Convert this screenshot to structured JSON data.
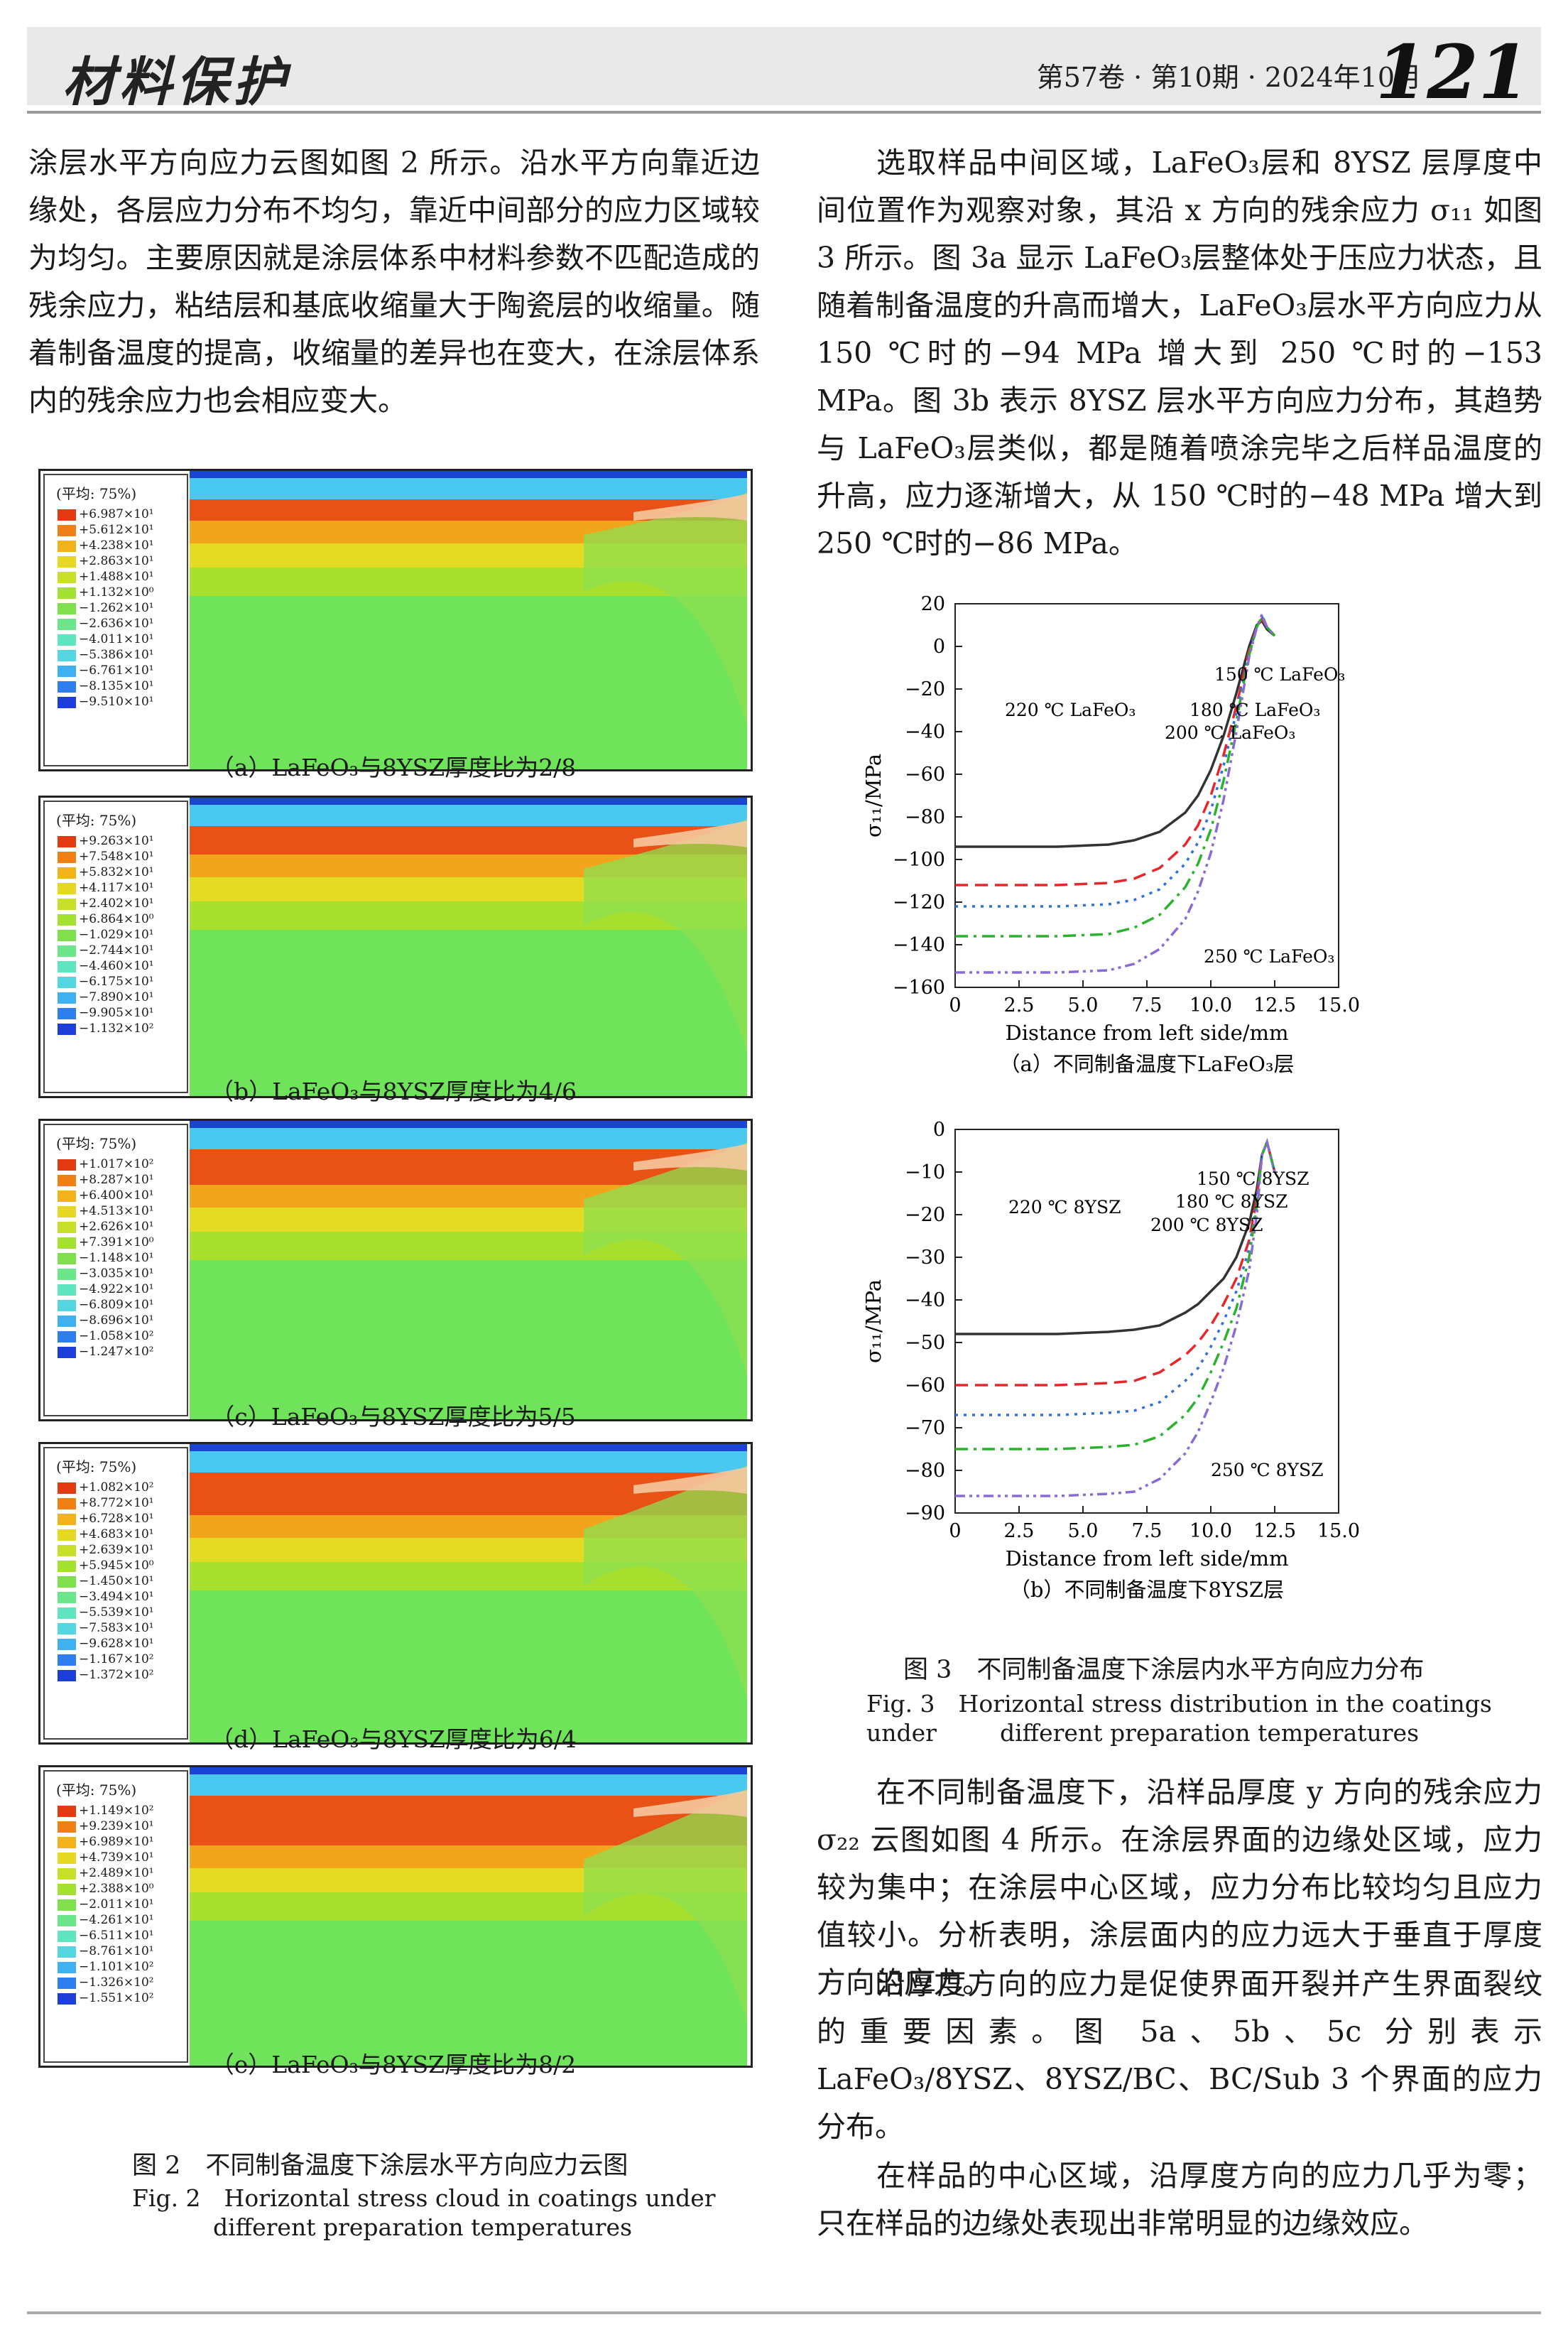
{
  "header": {
    "journal_logo": "材料保护",
    "issue_info": "第57卷 · 第10期 · 2024年10月",
    "page_number": "121"
  },
  "left_column": {
    "intro_paragraph": "涂层水平方向应力云图如图 2 所示。沿水平方向靠近边缘处，各层应力分布不均匀，靠近中间部分的应力区域较为均匀。主要原因就是涂层体系中材料参数不匹配造成的残余应力，粘结层和基底收缩量大于陶瓷层的收缩量。随着制备温度的提高，收缩量的差异也在变大，在涂层体系内的残余应力也会相应变大。",
    "panels": [
      {
        "id": "a",
        "legend_title": "(平均: 75%)",
        "caption": "（a）LaFeO₃与8YSZ厚度比为2/8",
        "values": [
          "+6.987×10¹",
          "+5.612×10¹",
          "+4.238×10¹",
          "+2.863×10¹",
          "+1.488×10¹",
          "+1.132×10⁰",
          "−1.262×10¹",
          "−2.636×10¹",
          "−4.011×10¹",
          "−5.386×10¹",
          "−6.761×10¹",
          "−8.135×10¹",
          "−9.510×10¹"
        ]
      },
      {
        "id": "b",
        "legend_title": "(平均: 75%)",
        "caption": "（b）LaFeO₃与8YSZ厚度比为4/6",
        "values": [
          "+9.263×10¹",
          "+7.548×10¹",
          "+5.832×10¹",
          "+4.117×10¹",
          "+2.402×10¹",
          "+6.864×10⁰",
          "−1.029×10¹",
          "−2.744×10¹",
          "−4.460×10¹",
          "−6.175×10¹",
          "−7.890×10¹",
          "−9.905×10¹",
          "−1.132×10²"
        ]
      },
      {
        "id": "c",
        "legend_title": "(平均: 75%)",
        "caption": "（c）LaFeO₃与8YSZ厚度比为5/5",
        "values": [
          "+1.017×10²",
          "+8.287×10¹",
          "+6.400×10¹",
          "+4.513×10¹",
          "+2.626×10¹",
          "+7.391×10⁰",
          "−1.148×10¹",
          "−3.035×10¹",
          "−4.922×10¹",
          "−6.809×10¹",
          "−8.696×10¹",
          "−1.058×10²",
          "−1.247×10²"
        ]
      },
      {
        "id": "d",
        "legend_title": "(平均: 75%)",
        "caption": "（d）LaFeO₃与8YSZ厚度比为6/4",
        "values": [
          "+1.082×10²",
          "+8.772×10¹",
          "+6.728×10¹",
          "+4.683×10¹",
          "+2.639×10¹",
          "+5.945×10⁰",
          "−1.450×10¹",
          "−3.494×10¹",
          "−5.539×10¹",
          "−7.583×10¹",
          "−9.628×10¹",
          "−1.167×10²",
          "−1.372×10²"
        ]
      },
      {
        "id": "e",
        "legend_title": "(平均: 75%)",
        "caption": "（e）LaFeO₃与8YSZ厚度比为8/2",
        "values": [
          "+1.149×10²",
          "+9.239×10¹",
          "+6.989×10¹",
          "+4.739×10¹",
          "+2.489×10¹",
          "+2.388×10⁰",
          "−2.011×10¹",
          "−4.261×10¹",
          "−6.511×10¹",
          "−8.761×10¹",
          "−1.101×10²",
          "−1.326×10²",
          "−1.551×10²"
        ]
      }
    ],
    "fig2_caption_zh": "图 2　不同制备温度下涂层水平方向应力云图",
    "fig2_caption_en_1": "Fig. 2　Horizontal stress cloud in coatings under",
    "fig2_caption_en_2": "different preparation temperatures"
  },
  "right_column": {
    "para1": "选取样品中间区域，LaFeO₃层和 8YSZ 层厚度中间位置作为观察对象，其沿 x 方向的残余应力 σ₁₁ 如图 3 所示。图 3a 显示 LaFeO₃层整体处于压应力状态，且随着制备温度的升高而增大，LaFeO₃层水平方向应力从 150 ℃时的−94 MPa 增大到 250 ℃时的−153 MPa。图 3b 表示 8YSZ 层水平方向应力分布，其趋势与 LaFeO₃层类似，都是随着喷涂完毕之后样品温度的升高，应力逐渐增大，从 150 ℃时的−48 MPa 增大到 250 ℃时的−86 MPa。",
    "fig3_caption_zh": "图 3　不同制备温度下涂层内水平方向应力分布",
    "fig3_caption_en_1": "Fig. 3　Horizontal stress distribution in the coatings under",
    "fig3_caption_en_2": "different preparation temperatures",
    "para2": "在不同制备温度下，沿样品厚度 y 方向的残余应力 σ₂₂ 云图如图 4 所示。在涂层界面的边缘处区域，应力较为集中；在涂层中心区域，应力分布比较均匀且应力值较小。分析表明，涂层面内的应力远大于垂直于厚度方向的应力。",
    "para3": "沿厚度方向的应力是促使界面开裂并产生界面裂纹的重要因素。图 5a、5b、5c 分别表示 LaFeO₃/8YSZ、8YSZ/BC、BC/Sub 3 个界面的应力分布。",
    "para4": "在样品的中心区域，沿厚度方向的应力几乎为零；只在样品的边缘处表现出非常明显的边缘效应。"
  },
  "chart_data": [
    {
      "type": "line",
      "caption": "（a）不同制备温度下LaFeO₃层",
      "xlabel": "Distance from left side/mm",
      "ylabel": "σ₁₁/MPa",
      "xlim": [
        0,
        15
      ],
      "ylim": [
        -160,
        20
      ],
      "xticks": [
        "0",
        "2.5",
        "5.0",
        "7.5",
        "10.0",
        "12.5",
        "15.0"
      ],
      "yticks": [
        "20",
        "0",
        "−20",
        "−40",
        "−60",
        "−80",
        "−100",
        "−120",
        "−140",
        "−160"
      ],
      "x": [
        0,
        2,
        4,
        6,
        7,
        8,
        9,
        9.5,
        10,
        10.5,
        11,
        11.5,
        11.8,
        12,
        12.2,
        12.5
      ],
      "series": [
        {
          "name": "150 ℃ LaFeO₃",
          "color": "#333333",
          "dash": "",
          "values": [
            -94,
            -94,
            -94,
            -93,
            -91,
            -87,
            -78,
            -70,
            -58,
            -42,
            -22,
            0,
            10,
            12,
            8,
            5
          ]
        },
        {
          "name": "180 ℃ LaFeO₃",
          "color": "#e8262a",
          "dash": "18 10",
          "values": [
            -112,
            -112,
            -112,
            -111,
            -109,
            -104,
            -93,
            -84,
            -70,
            -51,
            -28,
            -2,
            9,
            13,
            9,
            5
          ]
        },
        {
          "name": "200 ℃ LaFeO₃",
          "color": "#2f6fe0",
          "dash": "4 8",
          "values": [
            -122,
            -122,
            -122,
            -121,
            -119,
            -114,
            -102,
            -92,
            -77,
            -56,
            -31,
            -3,
            9,
            14,
            9,
            5
          ]
        },
        {
          "name": "220 ℃ LaFeO₃",
          "color": "#29b32c",
          "dash": "18 8 4 8",
          "values": [
            -136,
            -136,
            -136,
            -135,
            -132,
            -126,
            -113,
            -102,
            -86,
            -63,
            -35,
            -4,
            9,
            14,
            9,
            5
          ]
        },
        {
          "name": "250 ℃ LaFeO₃",
          "color": "#8a6bd6",
          "dash": "14 6 4 6 4 6",
          "values": [
            -153,
            -153,
            -153,
            -152,
            -149,
            -142,
            -128,
            -115,
            -97,
            -72,
            -40,
            -5,
            9,
            15,
            9,
            5
          ]
        }
      ]
    },
    {
      "type": "line",
      "caption": "（b）不同制备温度下8YSZ层",
      "xlabel": "Distance from left side/mm",
      "ylabel": "σ₁₁/MPa",
      "xlim": [
        0,
        15
      ],
      "ylim": [
        -90,
        0
      ],
      "xticks": [
        "0",
        "2.5",
        "5.0",
        "7.5",
        "10.0",
        "12.5",
        "15.0"
      ],
      "yticks": [
        "0",
        "−10",
        "−20",
        "−30",
        "−40",
        "−50",
        "−60",
        "−70",
        "−80",
        "−90"
      ],
      "x": [
        0,
        2,
        4,
        6,
        7,
        8,
        9,
        9.5,
        10,
        10.5,
        11,
        11.5,
        11.8,
        12,
        12.2,
        12.5
      ],
      "series": [
        {
          "name": "150 ℃ 8YSZ",
          "color": "#333333",
          "dash": "",
          "values": [
            -48,
            -48,
            -48,
            -47.5,
            -47,
            -46,
            -43,
            -41,
            -38,
            -35,
            -30,
            -22,
            -14,
            -6,
            -3,
            -10
          ]
        },
        {
          "name": "180 ℃ 8YSZ",
          "color": "#e8262a",
          "dash": "18 10",
          "values": [
            -60,
            -60,
            -60,
            -59.5,
            -59,
            -57,
            -53,
            -50,
            -46,
            -41,
            -35,
            -26,
            -16,
            -6,
            -3,
            -10
          ]
        },
        {
          "name": "200 ℃ 8YSZ",
          "color": "#2f6fe0",
          "dash": "4 8",
          "values": [
            -67,
            -67,
            -67,
            -66.5,
            -66,
            -64,
            -59,
            -56,
            -51,
            -45,
            -38,
            -28,
            -17,
            -6,
            -3,
            -10
          ]
        },
        {
          "name": "220 ℃ 8YSZ",
          "color": "#29b32c",
          "dash": "18 8 4 8",
          "values": [
            -75,
            -75,
            -75,
            -74.5,
            -74,
            -72,
            -67,
            -63,
            -57,
            -50,
            -42,
            -30,
            -18,
            -6,
            -3,
            -10
          ]
        },
        {
          "name": "250 ℃ 8YSZ",
          "color": "#8a6bd6",
          "dash": "14 6 4 6 4 6",
          "values": [
            -86,
            -86,
            -86,
            -85.5,
            -85,
            -82,
            -76,
            -71,
            -64,
            -56,
            -46,
            -33,
            -20,
            -6,
            -3,
            -10
          ]
        }
      ]
    }
  ]
}
